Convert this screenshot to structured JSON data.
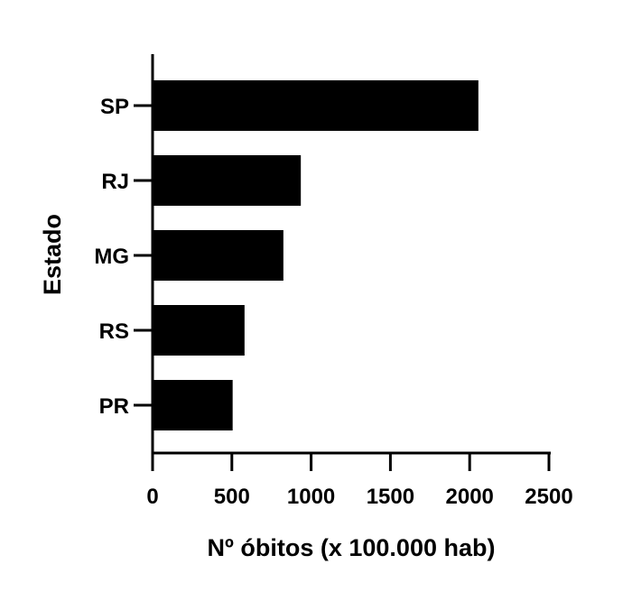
{
  "chart_data": {
    "type": "bar",
    "orientation": "horizontal",
    "title": "",
    "xlabel": "Nº óbitos (x 100.000 hab)",
    "ylabel": "Estado",
    "categories": [
      "SP",
      "RJ",
      "MG",
      "RS",
      "PR"
    ],
    "values": [
      2055,
      935,
      825,
      580,
      505
    ],
    "xlim": [
      0,
      2500
    ],
    "xticks": [
      0,
      500,
      1000,
      1500,
      2000,
      2500
    ],
    "bar_color": "#000000",
    "grid": false,
    "legend": "none"
  }
}
